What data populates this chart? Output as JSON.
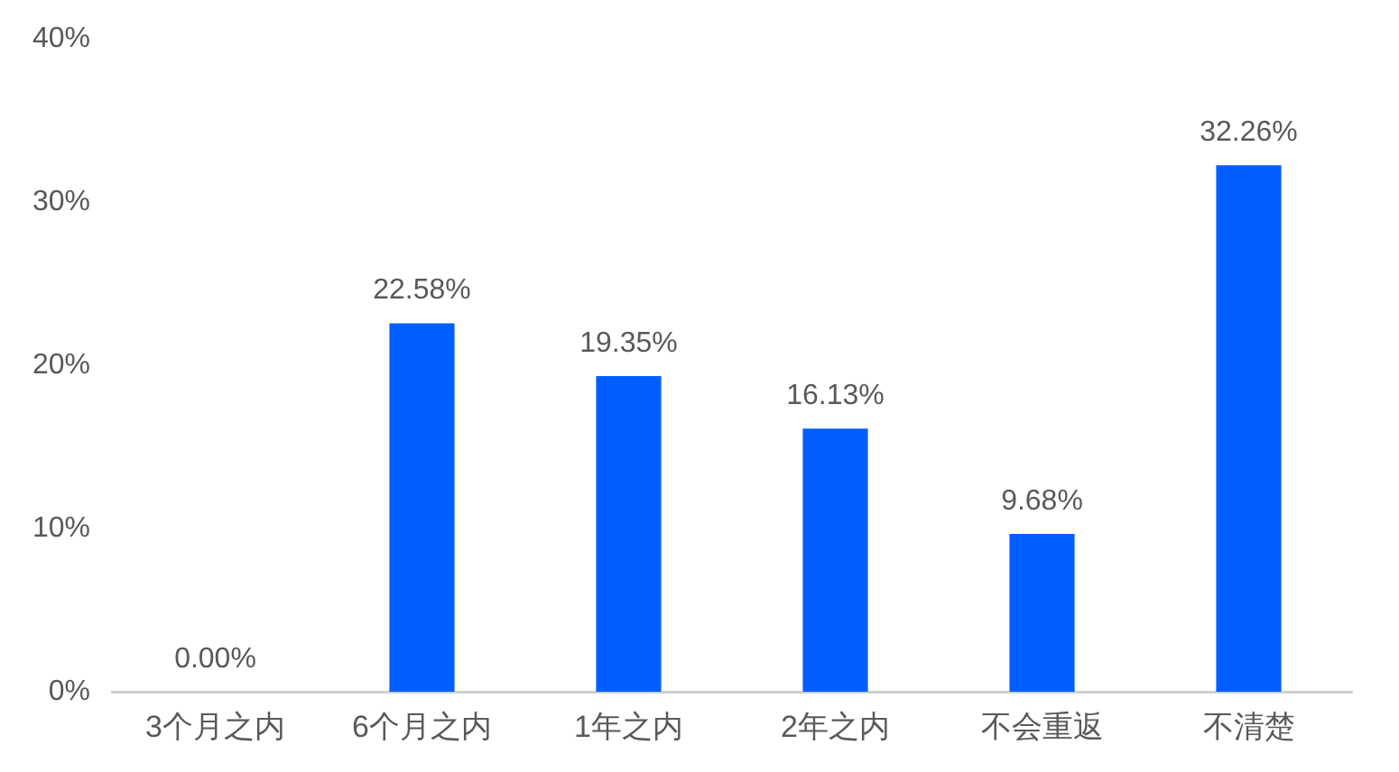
{
  "chart_data": {
    "type": "bar",
    "categories": [
      "3个月之内",
      "6个月之内",
      "1年之内",
      "2年之内",
      "不会重返",
      "不清楚"
    ],
    "values": [
      0,
      22.58,
      19.35,
      16.13,
      9.68,
      32.26
    ],
    "color": "#005eff",
    "value_labels": [
      "0.00%",
      "22.58%",
      "19.35%",
      "16.13%",
      "9.68%",
      "32.26%"
    ],
    "ylim": [
      0,
      40
    ],
    "yticks": [
      {
        "value": 0,
        "label": "0%"
      },
      {
        "value": 10,
        "label": "10%"
      },
      {
        "value": 20,
        "label": "20%"
      },
      {
        "value": 30,
        "label": "30%"
      },
      {
        "value": 40,
        "label": "40%"
      }
    ],
    "grid": false,
    "legend": false
  }
}
